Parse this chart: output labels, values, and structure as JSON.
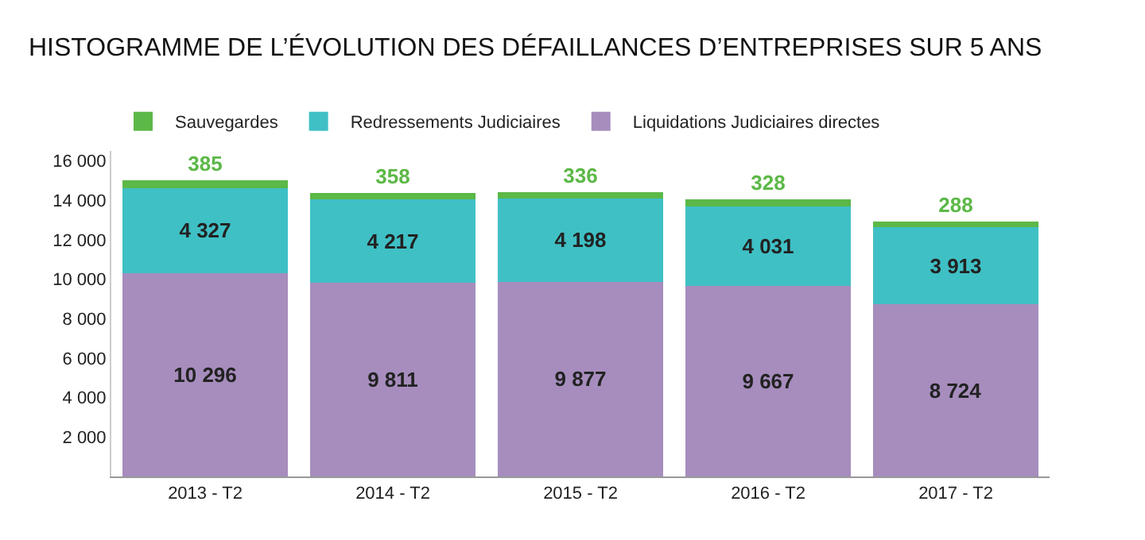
{
  "chart_data": {
    "type": "bar",
    "stacked": true,
    "title": "HISTOGRAMME DE L’ÉVOLUTION DES DÉFAILLANCES D’ENTREPRISES SUR 5 ANS",
    "categories": [
      "2013 - T2",
      "2014 - T2",
      "2015 - T2",
      "2016 - T2",
      "2017 - T2"
    ],
    "series": [
      {
        "name": "Liquidations Judiciaires directes",
        "color": "#a68dbd",
        "values": [
          10296,
          9811,
          9877,
          9667,
          8724
        ],
        "value_labels": [
          "10 296",
          "9 811",
          "9 877",
          "9 667",
          "8 724"
        ]
      },
      {
        "name": "Redressements Judiciaires",
        "color": "#3fc0c5",
        "values": [
          4327,
          4217,
          4198,
          4031,
          3913
        ],
        "value_labels": [
          "4 327",
          "4 217",
          "4 198",
          "4 031",
          "3 913"
        ]
      },
      {
        "name": "Sauvegardes",
        "color": "#5cb847",
        "values": [
          385,
          358,
          336,
          328,
          288
        ],
        "value_labels": [
          "385",
          "358",
          "336",
          "328",
          "288"
        ]
      }
    ],
    "ylim": [
      0,
      16500
    ],
    "yticks": [
      {
        "value": 2000,
        "label": "2 000"
      },
      {
        "value": 4000,
        "label": "4 000"
      },
      {
        "value": 6000,
        "label": "6 000"
      },
      {
        "value": 8000,
        "label": "8 000"
      },
      {
        "value": 10000,
        "label": "10 000"
      },
      {
        "value": 12000,
        "label": "12 000"
      },
      {
        "value": 14000,
        "label": "14 000"
      },
      {
        "value": 16000,
        "label": "16 000"
      }
    ],
    "legend": "top left"
  }
}
